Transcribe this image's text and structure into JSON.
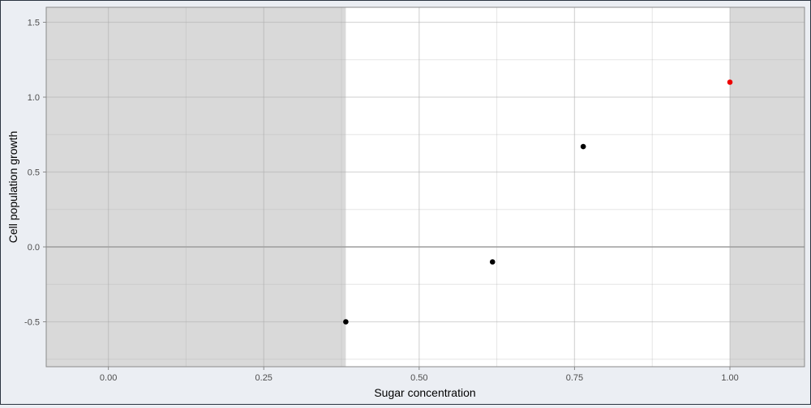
{
  "chart_data": {
    "type": "scatter",
    "xlabel": "Sugar concentration",
    "ylabel": "Cell population growth",
    "xlim": [
      -0.1,
      1.12
    ],
    "ylim": [
      -0.8,
      1.6
    ],
    "x_ticks": [
      0.0,
      0.25,
      0.5,
      0.75,
      1.0
    ],
    "x_tick_labels": [
      "0.00",
      "0.25",
      "0.50",
      "0.75",
      "1.00"
    ],
    "y_ticks": [
      -0.5,
      0.0,
      0.5,
      1.0,
      1.5
    ],
    "y_tick_labels": [
      "-0.5",
      "0.0",
      "0.5",
      "1.0",
      "1.5"
    ],
    "grid": true,
    "zero_line": 0.0,
    "shaded_regions": [
      {
        "x_from": -0.1,
        "x_to": 0.382,
        "color": "#d9d9d9"
      },
      {
        "x_from": 1.0,
        "x_to": 1.12,
        "color": "#d9d9d9"
      }
    ],
    "points": [
      {
        "x": 0.382,
        "y": -0.5,
        "color": "#000000"
      },
      {
        "x": 0.618,
        "y": -0.1,
        "color": "#000000"
      },
      {
        "x": 0.764,
        "y": 0.67,
        "color": "#000000"
      },
      {
        "x": 1.0,
        "y": 1.1,
        "color": "#ee0000"
      }
    ]
  }
}
